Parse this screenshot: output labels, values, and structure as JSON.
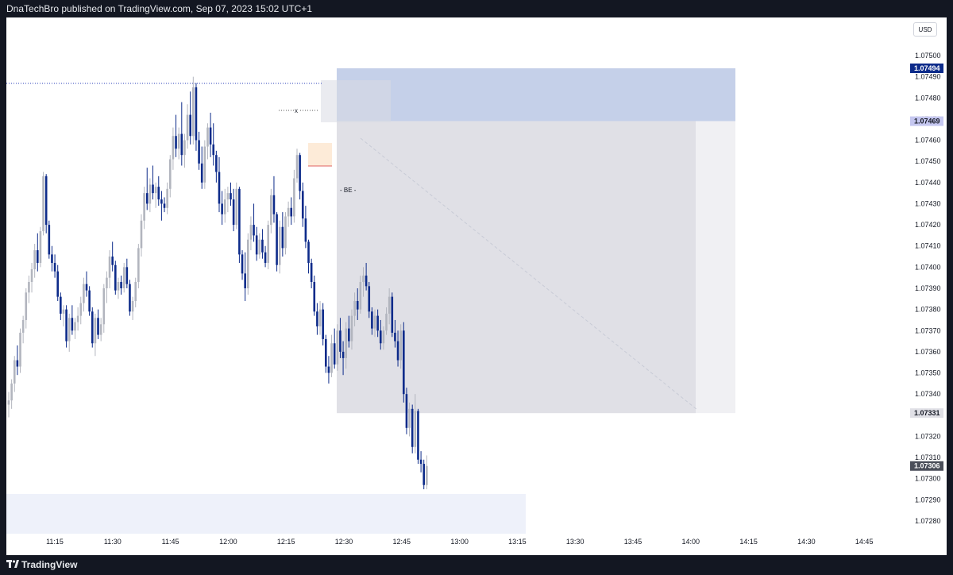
{
  "header": {
    "text": "DnaTechBro published on TradingView.com, Sep 07, 2023 15:02 UTC+1"
  },
  "footer": {
    "brand": "TradingView"
  },
  "currency": "USD",
  "colors": {
    "bull": "#b2b5be",
    "bear": "#0d2b8a",
    "stop_zone": "#c5d0e9",
    "target_zone": "#e0e0e6",
    "highlight_zone": "#eef1fa"
  },
  "annotations": {
    "x_marker": "x",
    "be_marker": "- BE -"
  },
  "chart_data": {
    "type": "candlestick",
    "y_ticks": [
      "1.07500",
      "1.07490",
      "1.07480",
      "1.07470",
      "1.07460",
      "1.07450",
      "1.07440",
      "1.07430",
      "1.07420",
      "1.07410",
      "1.07400",
      "1.07390",
      "1.07380",
      "1.07370",
      "1.07360",
      "1.07350",
      "1.07340",
      "1.07330",
      "1.07320",
      "1.07310",
      "1.07300",
      "1.07290",
      "1.07280"
    ],
    "x_ticks": [
      "11:15",
      "11:30",
      "11:45",
      "12:00",
      "12:15",
      "12:30",
      "12:45",
      "13:00",
      "13:15",
      "13:30",
      "13:45",
      "14:00",
      "14:15",
      "14:30",
      "14:45"
    ],
    "ylim": [
      1.07276,
      1.07516
    ],
    "price_labels": [
      {
        "value": "1.07494",
        "price": 1.07494,
        "bg": "#0d2b8a",
        "fg": "#ffffff"
      },
      {
        "value": "1.07469",
        "price": 1.07469,
        "bg": "#c5c7f0",
        "fg": "#131722"
      },
      {
        "value": "1.07331",
        "price": 1.07331,
        "bg": "#e0e0e6",
        "fg": "#131722"
      },
      {
        "value": "1.07306",
        "price": 1.07306,
        "bg": "#4a4e59",
        "fg": "#ffffff"
      }
    ],
    "position": {
      "entry": 1.07469,
      "stop": 1.07494,
      "target": 1.07331
    },
    "candles": [
      [
        1.07335,
        1.07341,
        1.07329,
        1.07337
      ],
      [
        1.07337,
        1.07347,
        1.07333,
        1.07345
      ],
      [
        1.07345,
        1.07358,
        1.07341,
        1.07356
      ],
      [
        1.07356,
        1.07363,
        1.07349,
        1.07353
      ],
      [
        1.07353,
        1.07371,
        1.0735,
        1.07369
      ],
      [
        1.07369,
        1.07377,
        1.07364,
        1.07375
      ],
      [
        1.07375,
        1.0739,
        1.07371,
        1.07388
      ],
      [
        1.07388,
        1.07396,
        1.07383,
        1.07393
      ],
      [
        1.07393,
        1.07402,
        1.07388,
        1.07399
      ],
      [
        1.07399,
        1.07411,
        1.07395,
        1.07408
      ],
      [
        1.07408,
        1.07416,
        1.07398,
        1.07402
      ],
      [
        1.07402,
        1.07419,
        1.074,
        1.07417
      ],
      [
        1.07417,
        1.07445,
        1.07415,
        1.07443
      ],
      [
        1.07443,
        1.07444,
        1.07416,
        1.0742
      ],
      [
        1.0742,
        1.07422,
        1.07404,
        1.07406
      ],
      [
        1.07406,
        1.0741,
        1.07398,
        1.07402
      ],
      [
        1.07402,
        1.07406,
        1.07395,
        1.07398
      ],
      [
        1.07398,
        1.07401,
        1.07384,
        1.07386
      ],
      [
        1.07386,
        1.07388,
        1.07375,
        1.07378
      ],
      [
        1.07378,
        1.07382,
        1.07372,
        1.0738
      ],
      [
        1.0738,
        1.07382,
        1.07362,
        1.07365
      ],
      [
        1.07365,
        1.07378,
        1.0736,
        1.07376
      ],
      [
        1.07376,
        1.07382,
        1.07368,
        1.0737
      ],
      [
        1.0737,
        1.07376,
        1.07366,
        1.07374
      ],
      [
        1.07374,
        1.07381,
        1.0737,
        1.07377
      ],
      [
        1.07377,
        1.07386,
        1.07373,
        1.07383
      ],
      [
        1.07383,
        1.07395,
        1.07379,
        1.07392
      ],
      [
        1.07392,
        1.07398,
        1.07386,
        1.07389
      ],
      [
        1.07389,
        1.07391,
        1.07377,
        1.07379
      ],
      [
        1.07379,
        1.07381,
        1.07362,
        1.07364
      ],
      [
        1.07364,
        1.07378,
        1.07358,
        1.07376
      ],
      [
        1.07376,
        1.0738,
        1.07366,
        1.07368
      ],
      [
        1.07368,
        1.07376,
        1.07365,
        1.07373
      ],
      [
        1.07373,
        1.07392,
        1.07369,
        1.0739
      ],
      [
        1.0739,
        1.07398,
        1.07383,
        1.07395
      ],
      [
        1.07395,
        1.07408,
        1.0739,
        1.07405
      ],
      [
        1.07405,
        1.07412,
        1.07398,
        1.07401
      ],
      [
        1.07401,
        1.07403,
        1.07387,
        1.07389
      ],
      [
        1.07389,
        1.07395,
        1.07385,
        1.07393
      ],
      [
        1.07393,
        1.07396,
        1.07387,
        1.0739
      ],
      [
        1.0739,
        1.07402,
        1.07388,
        1.074
      ],
      [
        1.074,
        1.07404,
        1.0739,
        1.07392
      ],
      [
        1.07392,
        1.07394,
        1.07377,
        1.07379
      ],
      [
        1.07379,
        1.07386,
        1.07375,
        1.07384
      ],
      [
        1.07384,
        1.07395,
        1.07381,
        1.07393
      ],
      [
        1.07393,
        1.07411,
        1.0739,
        1.07409
      ],
      [
        1.07409,
        1.07425,
        1.07405,
        1.07422
      ],
      [
        1.07422,
        1.07438,
        1.07418,
        1.07435
      ],
      [
        1.07435,
        1.07447,
        1.07427,
        1.0743
      ],
      [
        1.0743,
        1.07442,
        1.07426,
        1.07439
      ],
      [
        1.07439,
        1.07448,
        1.07432,
        1.07435
      ],
      [
        1.07435,
        1.0744,
        1.07428,
        1.07438
      ],
      [
        1.07438,
        1.07443,
        1.07429,
        1.07432
      ],
      [
        1.07432,
        1.07436,
        1.07422,
        1.0743
      ],
      [
        1.0743,
        1.07433,
        1.07426,
        1.07428
      ],
      [
        1.07428,
        1.0744,
        1.07425,
        1.07437
      ],
      [
        1.07437,
        1.07453,
        1.07433,
        1.07451
      ],
      [
        1.07451,
        1.07466,
        1.07446,
        1.07462
      ],
      [
        1.07462,
        1.07472,
        1.07452,
        1.07456
      ],
      [
        1.07456,
        1.07466,
        1.07451,
        1.07463
      ],
      [
        1.07463,
        1.07478,
        1.07448,
        1.07453
      ],
      [
        1.07453,
        1.07463,
        1.07447,
        1.0746
      ],
      [
        1.0746,
        1.07477,
        1.07456,
        1.07472
      ],
      [
        1.07472,
        1.07483,
        1.07458,
        1.07462
      ],
      [
        1.07462,
        1.0749,
        1.07458,
        1.07485
      ],
      [
        1.07485,
        1.07487,
        1.07455,
        1.0746
      ],
      [
        1.0746,
        1.07464,
        1.07446,
        1.07449
      ],
      [
        1.07449,
        1.07457,
        1.07437,
        1.0744
      ],
      [
        1.0744,
        1.0746,
        1.07437,
        1.07457
      ],
      [
        1.07457,
        1.07468,
        1.07451,
        1.07466
      ],
      [
        1.07466,
        1.07473,
        1.07452,
        1.07458
      ],
      [
        1.07458,
        1.07468,
        1.07448,
        1.07453
      ],
      [
        1.07453,
        1.07455,
        1.0744,
        1.07445
      ],
      [
        1.07445,
        1.07452,
        1.07426,
        1.0743
      ],
      [
        1.0743,
        1.07436,
        1.0742,
        1.07425
      ],
      [
        1.07425,
        1.07437,
        1.07421,
        1.07432
      ],
      [
        1.07432,
        1.07438,
        1.07426,
        1.07435
      ],
      [
        1.07435,
        1.0744,
        1.07429,
        1.07432
      ],
      [
        1.07432,
        1.07437,
        1.07417,
        1.0742
      ],
      [
        1.0742,
        1.0744,
        1.07418,
        1.07437
      ],
      [
        1.07437,
        1.07438,
        1.07402,
        1.07406
      ],
      [
        1.07406,
        1.07408,
        1.07394,
        1.07397
      ],
      [
        1.07397,
        1.07407,
        1.07384,
        1.0739
      ],
      [
        1.0739,
        1.07416,
        1.07387,
        1.07413
      ],
      [
        1.07413,
        1.07424,
        1.07408,
        1.0742
      ],
      [
        1.0742,
        1.0743,
        1.07412,
        1.07415
      ],
      [
        1.07415,
        1.07419,
        1.07403,
        1.07406
      ],
      [
        1.07406,
        1.07416,
        1.07404,
        1.07413
      ],
      [
        1.07413,
        1.07418,
        1.07404,
        1.07407
      ],
      [
        1.07407,
        1.0741,
        1.074,
        1.07402
      ],
      [
        1.07402,
        1.07422,
        1.07399,
        1.0742
      ],
      [
        1.0742,
        1.07437,
        1.07416,
        1.07434
      ],
      [
        1.07434,
        1.07443,
        1.07421,
        1.07425
      ],
      [
        1.07425,
        1.07426,
        1.07398,
        1.07401
      ],
      [
        1.07401,
        1.07422,
        1.07397,
        1.07419
      ],
      [
        1.07419,
        1.07426,
        1.07405,
        1.07409
      ],
      [
        1.07409,
        1.07426,
        1.07406,
        1.07424
      ],
      [
        1.07424,
        1.07431,
        1.07419,
        1.07428
      ],
      [
        1.07428,
        1.07433,
        1.0742,
        1.07424
      ],
      [
        1.07424,
        1.07446,
        1.07421,
        1.07442
      ],
      [
        1.07442,
        1.07456,
        1.0744,
        1.07453
      ],
      [
        1.07453,
        1.07454,
        1.07432,
        1.07436
      ],
      [
        1.07436,
        1.0744,
        1.07419,
        1.07423
      ],
      [
        1.07423,
        1.07429,
        1.07409,
        1.07412
      ],
      [
        1.07412,
        1.07413,
        1.07397,
        1.07402
      ],
      [
        1.07402,
        1.07404,
        1.0739,
        1.07393
      ],
      [
        1.07393,
        1.07396,
        1.07377,
        1.07379
      ],
      [
        1.07379,
        1.07383,
        1.07368,
        1.07372
      ],
      [
        1.07372,
        1.07384,
        1.07368,
        1.0738
      ],
      [
        1.0738,
        1.07383,
        1.07363,
        1.07366
      ],
      [
        1.07366,
        1.07368,
        1.0735,
        1.07353
      ],
      [
        1.07353,
        1.07358,
        1.07345,
        1.0735
      ],
      [
        1.0735,
        1.07368,
        1.07348,
        1.07364
      ],
      [
        1.07364,
        1.07371,
        1.07352,
        1.07354
      ],
      [
        1.07354,
        1.07373,
        1.07351,
        1.0737
      ],
      [
        1.0737,
        1.07376,
        1.07357,
        1.0736
      ],
      [
        1.0736,
        1.07365,
        1.07349,
        1.07357
      ],
      [
        1.07357,
        1.07374,
        1.07352,
        1.07371
      ],
      [
        1.07371,
        1.07377,
        1.07362,
        1.07365
      ],
      [
        1.07365,
        1.0738,
        1.07361,
        1.07377
      ],
      [
        1.07377,
        1.07388,
        1.07372,
        1.07384
      ],
      [
        1.07384,
        1.0739,
        1.07375,
        1.0738
      ],
      [
        1.0738,
        1.07396,
        1.07378,
        1.07393
      ],
      [
        1.07393,
        1.074,
        1.07386,
        1.07396
      ],
      [
        1.07396,
        1.07402,
        1.07389,
        1.07391
      ],
      [
        1.07391,
        1.07393,
        1.07376,
        1.07379
      ],
      [
        1.07379,
        1.07381,
        1.07368,
        1.07371
      ],
      [
        1.07371,
        1.0738,
        1.07367,
        1.07377
      ],
      [
        1.07377,
        1.0738,
        1.07367,
        1.0737
      ],
      [
        1.0737,
        1.07375,
        1.07361,
        1.07364
      ],
      [
        1.07364,
        1.07372,
        1.07361,
        1.0737
      ],
      [
        1.0737,
        1.07381,
        1.07368,
        1.07378
      ],
      [
        1.07378,
        1.0739,
        1.07373,
        1.07386
      ],
      [
        1.07386,
        1.07388,
        1.07367,
        1.07369
      ],
      [
        1.07369,
        1.07375,
        1.07362,
        1.07365
      ],
      [
        1.07365,
        1.0737,
        1.07353,
        1.07356
      ],
      [
        1.07356,
        1.07373,
        1.07352,
        1.0737
      ],
      [
        1.0737,
        1.07374,
        1.07336,
        1.0734
      ],
      [
        1.0734,
        1.07343,
        1.07321,
        1.07324
      ],
      [
        1.07324,
        1.07336,
        1.0732,
        1.07333
      ],
      [
        1.07333,
        1.07335,
        1.07312,
        1.07315
      ],
      [
        1.07315,
        1.0734,
        1.07312,
        1.07332
      ],
      [
        1.07332,
        1.07333,
        1.07307,
        1.07309
      ],
      [
        1.07309,
        1.07313,
        1.07303,
        1.07307
      ],
      [
        1.07307,
        1.07309,
        1.07295,
        1.07297
      ],
      [
        1.07297,
        1.07311,
        1.07295,
        1.07306
      ]
    ]
  }
}
